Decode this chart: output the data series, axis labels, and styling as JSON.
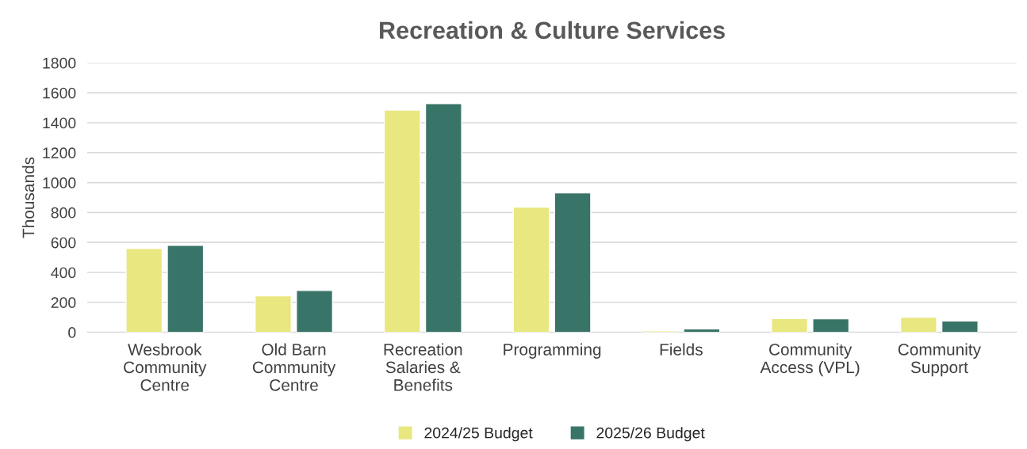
{
  "chart_data": {
    "type": "bar",
    "title": "Recreation & Culture Services",
    "ylabel": "Thousands",
    "categories": [
      "Wesbrook\nCommunity\nCentre",
      "Old Barn\nCommunity\nCentre",
      "Recreation\nSalaries &\nBenefits",
      "Programming",
      "Fields",
      "Community\nAccess (VPL)",
      "Community\nSupport"
    ],
    "series": [
      {
        "name": "2024/25 Budget",
        "color": "#e9e77f",
        "values": [
          560,
          243,
          1484,
          836,
          10,
          92,
          100
        ]
      },
      {
        "name": "2025/26 Budget",
        "color": "#387467",
        "values": [
          581,
          279,
          1528,
          932,
          22,
          90,
          76
        ]
      }
    ],
    "ylim": [
      0,
      1800
    ],
    "yticks": [
      0,
      200,
      400,
      600,
      800,
      1000,
      1200,
      1400,
      1600,
      1800
    ],
    "grid": "y",
    "legend": "bottom"
  }
}
